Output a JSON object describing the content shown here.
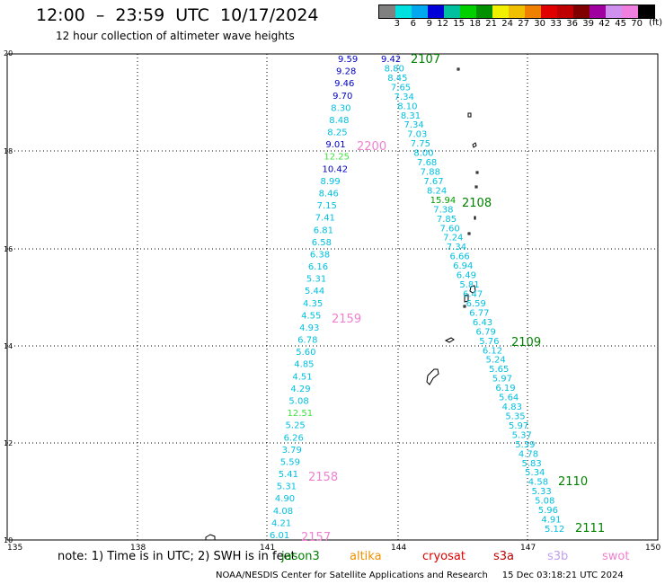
{
  "header": {
    "title": "12:00  –  23:59  UTC  10/17/2024",
    "subtitle": "12 hour collection of altimeter wave heights"
  },
  "scale": {
    "labels": [
      "3",
      "6",
      "9",
      "12",
      "15",
      "18",
      "21",
      "24",
      "27",
      "30",
      "33",
      "36",
      "39",
      "42",
      "45",
      "70"
    ],
    "colors": [
      "#808080",
      "#00e0e0",
      "#00a8f0",
      "#0000d8",
      "#00c0a0",
      "#00d000",
      "#009000",
      "#f0f000",
      "#f0c000",
      "#f08000",
      "#e00000",
      "#c00000",
      "#800000",
      "#a000a0",
      "#d090f0",
      "#f080e0",
      "#000000"
    ],
    "unit": "(ft)"
  },
  "axes": {
    "x_ticks": [
      "135",
      "138",
      "141",
      "144",
      "147",
      "150"
    ],
    "y_ticks": [
      "20",
      "18",
      "16",
      "14",
      "12",
      "10"
    ]
  },
  "passes": [
    {
      "label": "2107",
      "color": "#008000"
    },
    {
      "label": "2200",
      "color": "#f080d0"
    },
    {
      "label": "2108",
      "color": "#008000"
    },
    {
      "label": "2159",
      "color": "#f080d0"
    },
    {
      "label": "2109",
      "color": "#008000"
    },
    {
      "label": "2158",
      "color": "#f080d0"
    },
    {
      "label": "2110",
      "color": "#008000"
    },
    {
      "label": "2111",
      "color": "#008000"
    },
    {
      "label": "2157",
      "color": "#f080d0"
    }
  ],
  "track_left": [
    {
      "v": "9.59",
      "c": "#0000c0"
    },
    {
      "v": "9.28",
      "c": "#0000c0"
    },
    {
      "v": "9.46",
      "c": "#0000c0"
    },
    {
      "v": "9.70",
      "c": "#0000c0"
    },
    {
      "v": "8.30",
      "c": "#00c0e0"
    },
    {
      "v": "8.48",
      "c": "#00c0e0"
    },
    {
      "v": "8.25",
      "c": "#00c0e0"
    },
    {
      "v": "9.01",
      "c": "#0000c0"
    },
    {
      "v": "12.25",
      "c": "#40e040"
    },
    {
      "v": "10.42",
      "c": "#0000c0"
    },
    {
      "v": "8.99",
      "c": "#00c0e0"
    },
    {
      "v": "8.46",
      "c": "#00c0e0"
    },
    {
      "v": "7.15",
      "c": "#00c0e0"
    },
    {
      "v": "7.41",
      "c": "#00c0e0"
    },
    {
      "v": "6.81",
      "c": "#00c0e0"
    },
    {
      "v": "6.58",
      "c": "#00c0e0"
    },
    {
      "v": "6.38",
      "c": "#00c0e0"
    },
    {
      "v": "6.16",
      "c": "#00c0e0"
    },
    {
      "v": "5.31",
      "c": "#00c0e0"
    },
    {
      "v": "5.44",
      "c": "#00c0e0"
    },
    {
      "v": "4.35",
      "c": "#00c0e0"
    },
    {
      "v": "4.55",
      "c": "#00c0e0"
    },
    {
      "v": "4.93",
      "c": "#00c0e0"
    },
    {
      "v": "6.78",
      "c": "#00c0e0"
    },
    {
      "v": "5.60",
      "c": "#00c0e0"
    },
    {
      "v": "4.85",
      "c": "#00c0e0"
    },
    {
      "v": "4.51",
      "c": "#00c0e0"
    },
    {
      "v": "4.29",
      "c": "#00c0e0"
    },
    {
      "v": "5.08",
      "c": "#00c0e0"
    },
    {
      "v": "12.51",
      "c": "#40e040"
    },
    {
      "v": "5.25",
      "c": "#00c0e0"
    },
    {
      "v": "6.26",
      "c": "#00c0e0"
    },
    {
      "v": "3.79",
      "c": "#00c0e0"
    },
    {
      "v": "5.59",
      "c": "#00c0e0"
    },
    {
      "v": "5.41",
      "c": "#00c0e0"
    },
    {
      "v": "5.31",
      "c": "#00c0e0"
    },
    {
      "v": "4.90",
      "c": "#00c0e0"
    },
    {
      "v": "4.08",
      "c": "#00c0e0"
    },
    {
      "v": "4.21",
      "c": "#00c0e0"
    },
    {
      "v": "6.01",
      "c": "#00c0e0"
    }
  ],
  "track_right": [
    {
      "v": "9.42",
      "c": "#0000c0"
    },
    {
      "v": "8.80",
      "c": "#00c0e0"
    },
    {
      "v": "8.45",
      "c": "#00c0e0"
    },
    {
      "v": "7.65",
      "c": "#00c0e0"
    },
    {
      "v": "7.34",
      "c": "#00c0e0"
    },
    {
      "v": "8.10",
      "c": "#00c0e0"
    },
    {
      "v": "8.31",
      "c": "#00c0e0"
    },
    {
      "v": "7.34",
      "c": "#00c0e0"
    },
    {
      "v": "7.03",
      "c": "#00c0e0"
    },
    {
      "v": "7.75",
      "c": "#00c0e0"
    },
    {
      "v": "8.00",
      "c": "#00c0e0"
    },
    {
      "v": "7.68",
      "c": "#00c0e0"
    },
    {
      "v": "7.88",
      "c": "#00c0e0"
    },
    {
      "v": "7.67",
      "c": "#00c0e0"
    },
    {
      "v": "8.24",
      "c": "#00c0e0"
    },
    {
      "v": "15.94",
      "c": "#00a000"
    },
    {
      "v": "7.38",
      "c": "#00c0e0"
    },
    {
      "v": "7.85",
      "c": "#00c0e0"
    },
    {
      "v": "7.60",
      "c": "#00c0e0"
    },
    {
      "v": "7.24",
      "c": "#00c0e0"
    },
    {
      "v": "7.34",
      "c": "#00c0e0"
    },
    {
      "v": "6.66",
      "c": "#00c0e0"
    },
    {
      "v": "6.94",
      "c": "#00c0e0"
    },
    {
      "v": "6.49",
      "c": "#00c0e0"
    },
    {
      "v": "5.81",
      "c": "#00c0e0"
    },
    {
      "v": "6.47",
      "c": "#00c0e0"
    },
    {
      "v": "6.59",
      "c": "#00c0e0"
    },
    {
      "v": "6.77",
      "c": "#00c0e0"
    },
    {
      "v": "6.43",
      "c": "#00c0e0"
    },
    {
      "v": "6.79",
      "c": "#00c0e0"
    },
    {
      "v": "5.76",
      "c": "#00c0e0"
    },
    {
      "v": "6.12",
      "c": "#00c0e0"
    },
    {
      "v": "5.24",
      "c": "#00c0e0"
    },
    {
      "v": "5.65",
      "c": "#00c0e0"
    },
    {
      "v": "5.97",
      "c": "#00c0e0"
    },
    {
      "v": "6.19",
      "c": "#00c0e0"
    },
    {
      "v": "5.64",
      "c": "#00c0e0"
    },
    {
      "v": "4.83",
      "c": "#00c0e0"
    },
    {
      "v": "5.35",
      "c": "#00c0e0"
    },
    {
      "v": "5.97",
      "c": "#00c0e0"
    },
    {
      "v": "5.37",
      "c": "#00c0e0"
    },
    {
      "v": "5.39",
      "c": "#00c0e0"
    },
    {
      "v": "4.78",
      "c": "#00c0e0"
    },
    {
      "v": "5.83",
      "c": "#00c0e0"
    },
    {
      "v": "5.34",
      "c": "#00c0e0"
    },
    {
      "v": "4.58",
      "c": "#00c0e0"
    },
    {
      "v": "5.33",
      "c": "#00c0e0"
    },
    {
      "v": "5.08",
      "c": "#00c0e0"
    },
    {
      "v": "5.96",
      "c": "#00c0e0"
    },
    {
      "v": "4.91",
      "c": "#00c0e0"
    },
    {
      "v": "5.12",
      "c": "#00c0e0"
    }
  ],
  "footer": {
    "note": "note:  1) Time is in UTC;  2) SWH is in feet",
    "satellites": [
      {
        "name": "jason3",
        "color": "#008000"
      },
      {
        "name": "altika",
        "color": "#f09000"
      },
      {
        "name": "cryosat",
        "color": "#e00000"
      },
      {
        "name": "s3a",
        "color": "#c00000"
      },
      {
        "name": "s3b",
        "color": "#c0a0f0"
      },
      {
        "name": "swot",
        "color": "#f080d0"
      }
    ],
    "credit": "NOAA/NESDIS Center for Satellite Applications and Research     15 Dec 03:18:21 UTC 2024"
  }
}
